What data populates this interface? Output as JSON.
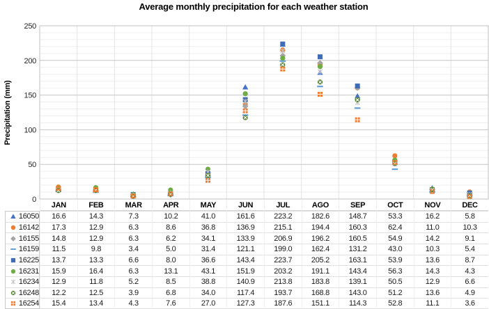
{
  "title": "Average monthly precipitation for each weather station",
  "y_axis": {
    "label": "Precipitation (mm)",
    "tick_labels": [
      "0",
      "50",
      "100",
      "150",
      "200",
      "250"
    ]
  },
  "colors": {
    "major_grid": "#c6c6c6",
    "minor_grid": "#efefef",
    "vert_grid": "#e3e3e3",
    "plot_border": "#c0c0c0"
  },
  "chart_data": {
    "type": "scatter",
    "title": "Average monthly precipitation for each weather station",
    "xlabel": "",
    "ylabel": "Precipitation (mm)",
    "ylim": [
      0,
      250
    ],
    "y_major_step": 50,
    "y_minor_step": 10,
    "grid": true,
    "legend_position": "table-left-column",
    "categories": [
      "JAN",
      "FEB",
      "MAR",
      "APR",
      "MAY",
      "JUN",
      "JUL",
      "AGO",
      "SEP",
      "OCT",
      "NOV",
      "DEC"
    ],
    "series": [
      {
        "name": "16050",
        "marker": "triangle",
        "color": "#4472C4",
        "values": [
          "16.6",
          "14.3",
          "7.3",
          "10.2",
          "41.0",
          "161.6",
          "223.2",
          "182.6",
          "148.7",
          "53.3",
          "16.2",
          "5.8"
        ]
      },
      {
        "name": "16142",
        "marker": "circle",
        "color": "#ED7D31",
        "values": [
          "17.3",
          "12.9",
          "6.3",
          "8.6",
          "36.8",
          "136.9",
          "215.1",
          "194.4",
          "160.3",
          "62.4",
          "11.0",
          "10.3"
        ]
      },
      {
        "name": "16155",
        "marker": "diamond",
        "color": "#A5A5A5",
        "values": [
          "14.8",
          "12.9",
          "6.3",
          "6.2",
          "34.1",
          "133.9",
          "206.9",
          "196.2",
          "160.5",
          "54.9",
          "14.2",
          "9.1"
        ]
      },
      {
        "name": "16159",
        "marker": "dash",
        "color": "#5B9BD5",
        "values": [
          "11.5",
          "9.8",
          "3.4",
          "5.0",
          "31.4",
          "121.1",
          "199.0",
          "162.4",
          "131.2",
          "43.0",
          "10.3",
          "5.4"
        ]
      },
      {
        "name": "16225",
        "marker": "square",
        "color": "#3F6CB4",
        "values": [
          "13.7",
          "13.3",
          "6.6",
          "8.0",
          "36.6",
          "143.4",
          "223.7",
          "205.2",
          "163.1",
          "53.9",
          "13.6",
          "8.7"
        ]
      },
      {
        "name": "16231",
        "marker": "circle",
        "color": "#70AD47",
        "values": [
          "15.9",
          "16.4",
          "6.3",
          "13.1",
          "43.1",
          "151.9",
          "203.2",
          "191.1",
          "143.4",
          "56.3",
          "14.3",
          "4.3"
        ]
      },
      {
        "name": "16234",
        "marker": "asterisk",
        "color": "#C2C2C2",
        "values": [
          "12.9",
          "11.8",
          "5.2",
          "8.5",
          "38.8",
          "140.9",
          "213.8",
          "183.8",
          "139.1",
          "50.5",
          "12.9",
          "6.6"
        ]
      },
      {
        "name": "16248",
        "marker": "circle-x",
        "color": "#548235",
        "values": [
          "12.2",
          "12.5",
          "3.9",
          "6.8",
          "34.0",
          "117.4",
          "193.7",
          "168.8",
          "143.0",
          "51.2",
          "13.6",
          "4.9"
        ]
      },
      {
        "name": "16254",
        "marker": "quad-square",
        "color": "#ED7D31",
        "values": [
          "15.4",
          "13.4",
          "4.3",
          "7.6",
          "27.0",
          "127.3",
          "187.6",
          "151.1",
          "114.3",
          "52.8",
          "11.1",
          "3.6"
        ]
      }
    ]
  }
}
